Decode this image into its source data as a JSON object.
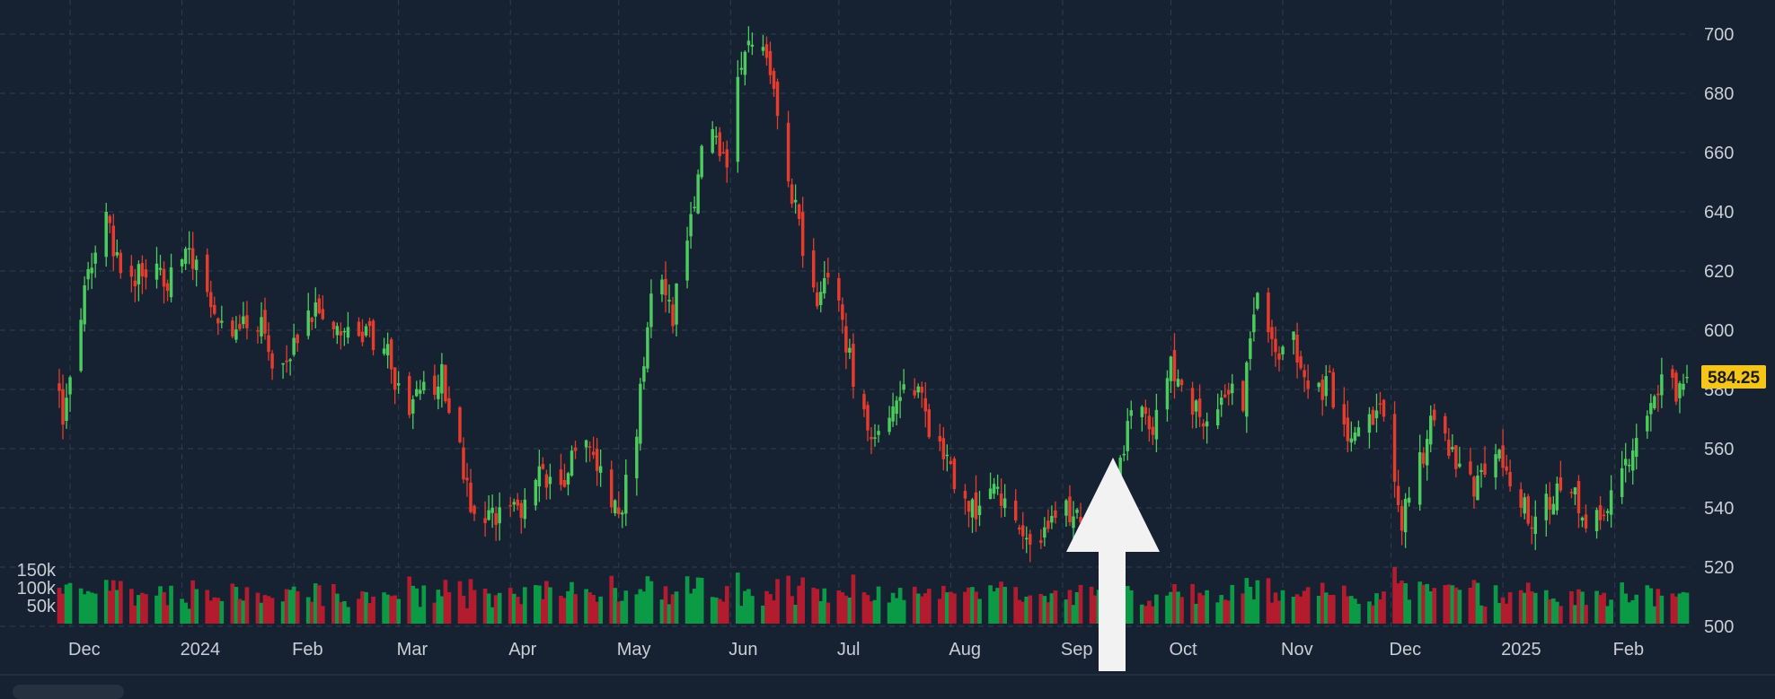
{
  "chart_data": {
    "type": "candlestick",
    "x_tick_labels": [
      "Dec",
      "2024",
      "Feb",
      "Mar",
      "Apr",
      "May",
      "Jun",
      "Jul",
      "Aug",
      "Sep",
      "Oct",
      "Nov",
      "Dec",
      "2025",
      "Feb"
    ],
    "y_tick_labels": [
      "700",
      "680",
      "660",
      "640",
      "620",
      "600",
      "580",
      "560",
      "540",
      "520",
      "500"
    ],
    "y_ticks": [
      700,
      680,
      660,
      640,
      620,
      600,
      580,
      560,
      540,
      520,
      500
    ],
    "ylim": [
      500,
      707
    ],
    "volume_tick_labels": [
      "150k",
      "100k",
      "50k"
    ],
    "volume_ticks": [
      150000,
      100000,
      50000
    ],
    "last_price": 584.25,
    "last_price_label": "584.25",
    "x_range": [
      "2023-11-28",
      "2025-02-21"
    ],
    "anchors": [
      [
        "2023-11-29",
        565
      ],
      [
        "2023-12-05",
        612
      ],
      [
        "2023-12-10",
        640
      ],
      [
        "2023-12-16",
        616
      ],
      [
        "2023-12-22",
        622
      ],
      [
        "2023-12-28",
        614
      ],
      [
        "2024-01-02",
        630
      ],
      [
        "2024-01-09",
        612
      ],
      [
        "2024-01-14",
        594
      ],
      [
        "2024-01-21",
        608
      ],
      [
        "2024-01-27",
        585
      ],
      [
        "2024-02-02",
        596
      ],
      [
        "2024-02-07",
        610
      ],
      [
        "2024-02-14",
        598
      ],
      [
        "2024-02-20",
        600
      ],
      [
        "2024-02-27",
        592
      ],
      [
        "2024-03-03",
        572
      ],
      [
        "2024-03-09",
        580
      ],
      [
        "2024-03-13",
        585
      ],
      [
        "2024-03-18",
        560
      ],
      [
        "2024-03-23",
        530
      ],
      [
        "2024-03-30",
        542
      ],
      [
        "2024-04-04",
        536
      ],
      [
        "2024-04-09",
        553
      ],
      [
        "2024-04-15",
        548
      ],
      [
        "2024-04-20",
        565
      ],
      [
        "2024-04-26",
        552
      ],
      [
        "2024-05-01",
        536
      ],
      [
        "2024-05-06",
        567
      ],
      [
        "2024-05-11",
        620
      ],
      [
        "2024-05-16",
        605
      ],
      [
        "2024-05-21",
        640
      ],
      [
        "2024-05-26",
        670
      ],
      [
        "2024-05-31",
        655
      ],
      [
        "2024-06-04",
        690
      ],
      [
        "2024-06-08",
        700
      ],
      [
        "2024-06-13",
        680
      ],
      [
        "2024-06-19",
        640
      ],
      [
        "2024-06-24",
        610
      ],
      [
        "2024-06-29",
        620
      ],
      [
        "2024-07-04",
        590
      ],
      [
        "2024-07-10",
        562
      ],
      [
        "2024-07-16",
        575
      ],
      [
        "2024-07-21",
        585
      ],
      [
        "2024-07-26",
        568
      ],
      [
        "2024-08-02",
        548
      ],
      [
        "2024-08-08",
        540
      ],
      [
        "2024-08-14",
        548
      ],
      [
        "2024-08-20",
        530
      ],
      [
        "2024-08-25",
        525
      ],
      [
        "2024-08-31",
        540
      ],
      [
        "2024-09-06",
        535
      ],
      [
        "2024-09-11",
        528
      ],
      [
        "2024-09-16",
        550
      ],
      [
        "2024-09-21",
        578
      ],
      [
        "2024-09-26",
        566
      ],
      [
        "2024-10-01",
        588
      ],
      [
        "2024-10-06",
        575
      ],
      [
        "2024-10-11",
        568
      ],
      [
        "2024-10-17",
        582
      ],
      [
        "2024-10-21",
        576
      ],
      [
        "2024-10-25",
        612
      ],
      [
        "2024-10-30",
        590
      ],
      [
        "2024-11-04",
        596
      ],
      [
        "2024-11-09",
        578
      ],
      [
        "2024-11-14",
        582
      ],
      [
        "2024-11-19",
        560
      ],
      [
        "2024-11-24",
        572
      ],
      [
        "2024-11-29",
        570
      ],
      [
        "2024-12-04",
        535
      ],
      [
        "2024-12-08",
        550
      ],
      [
        "2024-12-13",
        572
      ],
      [
        "2024-12-18",
        558
      ],
      [
        "2024-12-24",
        548
      ],
      [
        "2024-12-30",
        560
      ],
      [
        "2025-01-04",
        548
      ],
      [
        "2025-01-09",
        535
      ],
      [
        "2025-01-14",
        542
      ],
      [
        "2025-01-19",
        550
      ],
      [
        "2025-01-24",
        535
      ],
      [
        "2025-01-29",
        540
      ],
      [
        "2025-02-03",
        550
      ],
      [
        "2025-02-07",
        562
      ],
      [
        "2025-02-11",
        572
      ],
      [
        "2025-02-14",
        585
      ],
      [
        "2025-02-18",
        578
      ],
      [
        "2025-02-21",
        584
      ]
    ]
  },
  "colors": {
    "background": "#162231",
    "up": "#4ccb5e",
    "down": "#e53c2e",
    "volume_up": "#0b9a45",
    "volume_down": "#b31b2f",
    "grid": "#2f3d4d",
    "price_tag": "#f5c518",
    "arrow": "#f2f2f2"
  },
  "annotation": {
    "type": "arrow-up-icon"
  }
}
